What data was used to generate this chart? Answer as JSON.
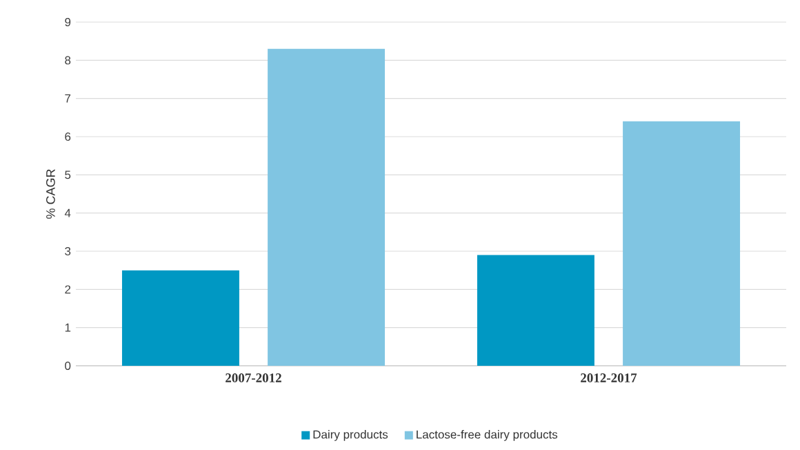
{
  "chart_data": {
    "type": "bar",
    "ylabel": "% CAGR",
    "categories": [
      "2007-2012",
      "2012-2017"
    ],
    "series": [
      {
        "name": "Dairy products",
        "color": "#0098c3",
        "values": [
          2.5,
          2.9
        ]
      },
      {
        "name": "Lactose-free dairy products",
        "color": "#80c5e2",
        "values": [
          8.3,
          6.4
        ]
      }
    ],
    "ylim": [
      0,
      9
    ],
    "yticks": [
      0,
      1,
      2,
      3,
      4,
      5,
      6,
      7,
      8,
      9
    ],
    "grid": "y",
    "legend": "bottom"
  }
}
